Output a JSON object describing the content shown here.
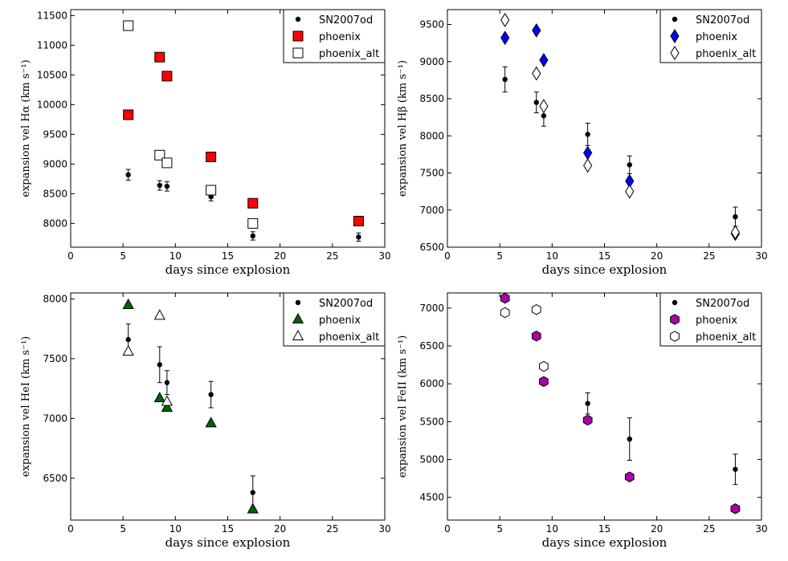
{
  "chart_data": [
    {
      "type": "scatter",
      "id": "halpha",
      "xlabel": "days since explosion",
      "ylabel": "expansion vel Hα (km s⁻¹)",
      "xlim": [
        0,
        30
      ],
      "ylim": [
        7600,
        11600
      ],
      "xticks": [
        0,
        5,
        10,
        15,
        20,
        25,
        30
      ],
      "yticks": [
        8000,
        8500,
        9000,
        9500,
        10000,
        10500,
        11000,
        11500
      ],
      "legend": "top-right",
      "series": [
        {
          "name": "SN2007od",
          "marker": "dot",
          "color": "#000000",
          "x": [
            5.5,
            8.5,
            9.2,
            13.4,
            17.4,
            27.5
          ],
          "y": [
            8820,
            8640,
            8625,
            8450,
            7790,
            7770
          ],
          "err": [
            90,
            80,
            80,
            70,
            70,
            70
          ]
        },
        {
          "name": "phoenix",
          "marker": "square",
          "color": "#ff0000",
          "x": [
            5.5,
            8.5,
            9.2,
            13.4,
            17.4,
            27.5
          ],
          "y": [
            9830,
            10800,
            10480,
            9120,
            8340,
            8040
          ]
        },
        {
          "name": "phoenix_alt",
          "marker": "square-open",
          "color": "#ffffff",
          "x": [
            5.5,
            8.5,
            9.2,
            13.4,
            17.4
          ],
          "y": [
            11330,
            9150,
            9020,
            8560,
            8000
          ]
        }
      ]
    },
    {
      "type": "scatter",
      "id": "hbeta",
      "xlabel": "days since explosion",
      "ylabel": "expansion vel Hβ (km s⁻¹)",
      "xlim": [
        0,
        30
      ],
      "ylim": [
        6500,
        9700
      ],
      "xticks": [
        0,
        5,
        10,
        15,
        20,
        25,
        30
      ],
      "yticks": [
        6500,
        7000,
        7500,
        8000,
        8500,
        9000,
        9500
      ],
      "legend": "top-right",
      "series": [
        {
          "name": "SN2007od",
          "marker": "dot",
          "color": "#000000",
          "x": [
            5.5,
            8.5,
            9.2,
            13.4,
            17.4,
            27.5
          ],
          "y": [
            8760,
            8450,
            8270,
            8020,
            7610,
            6910
          ],
          "err": [
            170,
            140,
            140,
            150,
            120,
            130
          ]
        },
        {
          "name": "phoenix",
          "marker": "diamond",
          "color": "#0000ff",
          "x": [
            5.5,
            8.5,
            9.2,
            13.4,
            17.4,
            27.5
          ],
          "y": [
            9320,
            9420,
            9020,
            7770,
            7390,
            6680
          ]
        },
        {
          "name": "phoenix_alt",
          "marker": "diamond-open",
          "color": "#ffffff",
          "x": [
            5.5,
            8.5,
            9.2,
            13.4,
            17.4,
            27.5
          ],
          "y": [
            9560,
            8840,
            8400,
            7600,
            7250,
            6700
          ]
        }
      ]
    },
    {
      "type": "scatter",
      "id": "hei",
      "xlabel": "days since explosion",
      "ylabel": "expansion vel HeI (km s⁻¹)",
      "xlim": [
        0,
        30
      ],
      "ylim": [
        6150,
        8050
      ],
      "xticks": [
        0,
        5,
        10,
        15,
        20,
        25,
        30
      ],
      "yticks": [
        6500,
        7000,
        7500,
        8000
      ],
      "legend": "top-right",
      "series": [
        {
          "name": "SN2007od",
          "marker": "dot",
          "color": "#000000",
          "x": [
            5.5,
            8.5,
            9.2,
            13.4,
            17.4
          ],
          "y": [
            7660,
            7450,
            7300,
            7200,
            6380
          ],
          "err": [
            130,
            150,
            100,
            110,
            140
          ]
        },
        {
          "name": "phoenix",
          "marker": "triangle",
          "color": "#006400",
          "x": [
            5.5,
            8.5,
            9.2,
            13.4,
            17.4
          ],
          "y": [
            7950,
            7170,
            7090,
            6960,
            6240
          ]
        },
        {
          "name": "phoenix_alt",
          "marker": "triangle-open",
          "color": "#ffffff",
          "x": [
            5.5,
            8.5,
            9.2
          ],
          "y": [
            7560,
            7860,
            7140
          ]
        }
      ]
    },
    {
      "type": "scatter",
      "id": "feii",
      "xlabel": "days since explosion",
      "ylabel": "expansion vel FeII (km s⁻¹)",
      "xlim": [
        0,
        30
      ],
      "ylim": [
        4200,
        7200
      ],
      "xticks": [
        0,
        5,
        10,
        15,
        20,
        25,
        30
      ],
      "yticks": [
        4500,
        5000,
        5500,
        6000,
        6500,
        7000
      ],
      "legend": "top-right",
      "series": [
        {
          "name": "SN2007od",
          "marker": "dot",
          "color": "#000000",
          "x": [
            13.4,
            17.4,
            27.5
          ],
          "y": [
            5740,
            5270,
            4870
          ],
          "err": [
            140,
            280,
            200
          ]
        },
        {
          "name": "phoenix",
          "marker": "hexagon",
          "color": "#aa00aa",
          "x": [
            5.5,
            8.5,
            9.2,
            13.4,
            17.4,
            27.5
          ],
          "y": [
            7130,
            6630,
            6030,
            5520,
            4770,
            4350
          ]
        },
        {
          "name": "phoenix_alt",
          "marker": "hexagon-open",
          "color": "#ffffff",
          "x": [
            5.5,
            8.5,
            9.2
          ],
          "y": [
            6940,
            6980,
            6230
          ]
        }
      ]
    }
  ]
}
